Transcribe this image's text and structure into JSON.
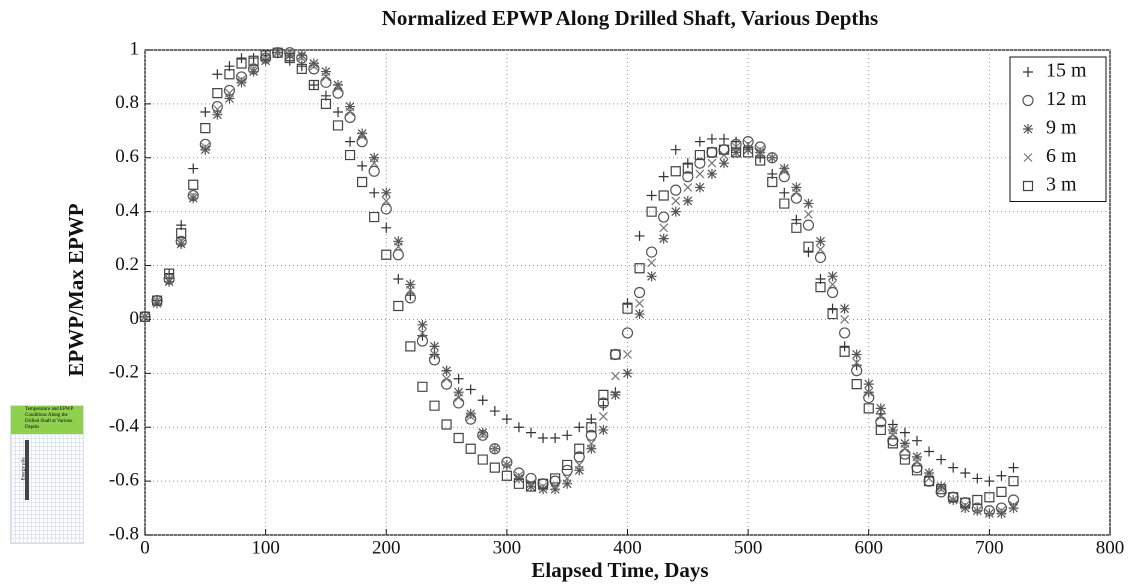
{
  "chart_data": {
    "type": "scatter",
    "title": "Normalized EPWP Along Drilled Shaft, Various Depths",
    "x_label": "Elapsed Time, Days",
    "y_label": "EPWP/Max EPWP",
    "xlim": [
      0,
      800
    ],
    "xticks": [
      0,
      100,
      200,
      300,
      400,
      500,
      600,
      700,
      800
    ],
    "ylim": [
      -0.8,
      1
    ],
    "yticks": [
      -0.8,
      -0.6,
      -0.4,
      -0.2,
      0,
      0.2,
      0.4,
      0.6,
      0.8,
      1
    ],
    "grid": true,
    "legend": "upper right",
    "x": [
      0,
      10,
      20,
      30,
      40,
      50,
      60,
      70,
      80,
      90,
      100,
      110,
      120,
      130,
      140,
      150,
      160,
      170,
      180,
      190,
      200,
      210,
      220,
      230,
      240,
      250,
      260,
      270,
      280,
      290,
      300,
      310,
      320,
      330,
      340,
      350,
      360,
      370,
      380,
      390,
      400,
      410,
      420,
      430,
      440,
      450,
      460,
      470,
      480,
      490,
      500,
      510,
      520,
      530,
      540,
      550,
      560,
      570,
      580,
      590,
      600,
      610,
      620,
      630,
      640,
      650,
      660,
      670,
      680,
      690,
      700,
      710,
      720
    ],
    "series": [
      {
        "name": "15 m",
        "color": "#333333",
        "marker": "plus",
        "values": [
          0.01,
          0.07,
          0.17,
          0.35,
          0.56,
          0.77,
          0.91,
          0.94,
          0.97,
          0.97,
          0.98,
          0.99,
          0.96,
          0.94,
          0.87,
          0.83,
          0.77,
          0.66,
          0.57,
          0.47,
          0.34,
          0.15,
          0.09,
          -0.06,
          -0.13,
          -0.19,
          -0.22,
          -0.26,
          -0.3,
          -0.34,
          -0.37,
          -0.4,
          -0.42,
          -0.44,
          -0.44,
          -0.43,
          -0.4,
          -0.37,
          -0.32,
          -0.27,
          0.06,
          0.31,
          0.46,
          0.53,
          0.63,
          0.58,
          0.66,
          0.67,
          0.67,
          0.66,
          0.64,
          0.6,
          0.54,
          0.47,
          0.37,
          0.25,
          0.15,
          0.04,
          -0.1,
          -0.17,
          -0.27,
          -0.35,
          -0.39,
          -0.42,
          -0.45,
          -0.49,
          -0.52,
          -0.55,
          -0.57,
          -0.59,
          -0.6,
          -0.58,
          -0.55
        ]
      },
      {
        "name": "12 m",
        "color": "#555555",
        "marker": "circle",
        "values": [
          0.01,
          0.07,
          0.15,
          0.29,
          0.46,
          0.65,
          0.79,
          0.85,
          0.9,
          0.93,
          0.97,
          0.99,
          0.99,
          0.97,
          0.93,
          0.88,
          0.84,
          0.75,
          0.66,
          0.55,
          0.41,
          0.24,
          0.08,
          -0.08,
          -0.15,
          -0.24,
          -0.31,
          -0.37,
          -0.43,
          -0.48,
          -0.53,
          -0.57,
          -0.59,
          -0.61,
          -0.6,
          -0.56,
          -0.51,
          -0.43,
          -0.31,
          -0.13,
          -0.05,
          0.1,
          0.25,
          0.38,
          0.48,
          0.53,
          0.58,
          0.62,
          0.63,
          0.65,
          0.66,
          0.64,
          0.6,
          0.53,
          0.45,
          0.35,
          0.23,
          0.1,
          -0.05,
          -0.19,
          -0.29,
          -0.38,
          -0.45,
          -0.5,
          -0.55,
          -0.6,
          -0.64,
          -0.66,
          -0.68,
          -0.7,
          -0.71,
          -0.7,
          -0.67
        ]
      },
      {
        "name": "9 m",
        "color": "#555555",
        "marker": "star",
        "values": [
          0.01,
          0.06,
          0.14,
          0.28,
          0.45,
          0.63,
          0.76,
          0.82,
          0.88,
          0.92,
          0.96,
          0.99,
          0.98,
          0.98,
          0.95,
          0.92,
          0.87,
          0.79,
          0.69,
          0.6,
          0.47,
          0.29,
          0.13,
          -0.02,
          -0.1,
          -0.19,
          -0.27,
          -0.35,
          -0.42,
          -0.48,
          -0.54,
          -0.59,
          -0.62,
          -0.63,
          -0.63,
          -0.61,
          -0.56,
          -0.48,
          -0.41,
          -0.28,
          -0.2,
          0.02,
          0.16,
          0.3,
          0.4,
          0.44,
          0.49,
          0.54,
          0.58,
          0.62,
          0.63,
          0.62,
          0.6,
          0.56,
          0.49,
          0.43,
          0.29,
          0.16,
          0.04,
          -0.13,
          -0.24,
          -0.33,
          -0.41,
          -0.46,
          -0.51,
          -0.57,
          -0.62,
          -0.67,
          -0.7,
          -0.71,
          -0.72,
          -0.72,
          -0.7
        ]
      },
      {
        "name": "6 m",
        "color": "#777777",
        "marker": "x",
        "values": [
          0.01,
          0.07,
          0.15,
          0.29,
          0.46,
          0.64,
          0.78,
          0.84,
          0.89,
          0.93,
          0.97,
          0.99,
          0.99,
          0.97,
          0.94,
          0.9,
          0.86,
          0.77,
          0.68,
          0.58,
          0.44,
          0.27,
          0.11,
          -0.05,
          -0.13,
          -0.22,
          -0.29,
          -0.36,
          -0.43,
          -0.48,
          -0.54,
          -0.58,
          -0.61,
          -0.62,
          -0.62,
          -0.59,
          -0.54,
          -0.46,
          -0.36,
          -0.21,
          -0.13,
          0.06,
          0.21,
          0.34,
          0.44,
          0.49,
          0.54,
          0.58,
          0.61,
          0.64,
          0.65,
          0.63,
          0.6,
          0.55,
          0.47,
          0.39,
          0.26,
          0.13,
          0.0,
          -0.16,
          -0.27,
          -0.36,
          -0.43,
          -0.48,
          -0.53,
          -0.59,
          -0.63,
          -0.67,
          -0.69,
          -0.71,
          -0.72,
          -0.71,
          -0.69
        ]
      },
      {
        "name": "3 m",
        "color": "#444444",
        "marker": "square",
        "values": [
          0.01,
          0.07,
          0.17,
          0.32,
          0.5,
          0.71,
          0.84,
          0.91,
          0.95,
          0.96,
          0.98,
          0.99,
          0.97,
          0.93,
          0.87,
          0.8,
          0.72,
          0.61,
          0.51,
          0.38,
          0.24,
          0.05,
          -0.1,
          -0.25,
          -0.32,
          -0.39,
          -0.44,
          -0.48,
          -0.52,
          -0.55,
          -0.58,
          -0.61,
          -0.62,
          -0.61,
          -0.59,
          -0.54,
          -0.48,
          -0.4,
          -0.28,
          -0.13,
          0.04,
          0.19,
          0.4,
          0.46,
          0.55,
          0.56,
          0.61,
          0.62,
          0.63,
          0.62,
          0.62,
          0.59,
          0.51,
          0.43,
          0.34,
          0.27,
          0.12,
          0.02,
          -0.12,
          -0.24,
          -0.33,
          -0.41,
          -0.46,
          -0.52,
          -0.56,
          -0.6,
          -0.63,
          -0.66,
          -0.68,
          -0.67,
          -0.66,
          -0.64,
          -0.6
        ]
      }
    ],
    "inset": {
      "title": "Temperature and EPWP Conditions Along the Drilled Shaft at Various Depths",
      "label": "Energy pile"
    }
  }
}
